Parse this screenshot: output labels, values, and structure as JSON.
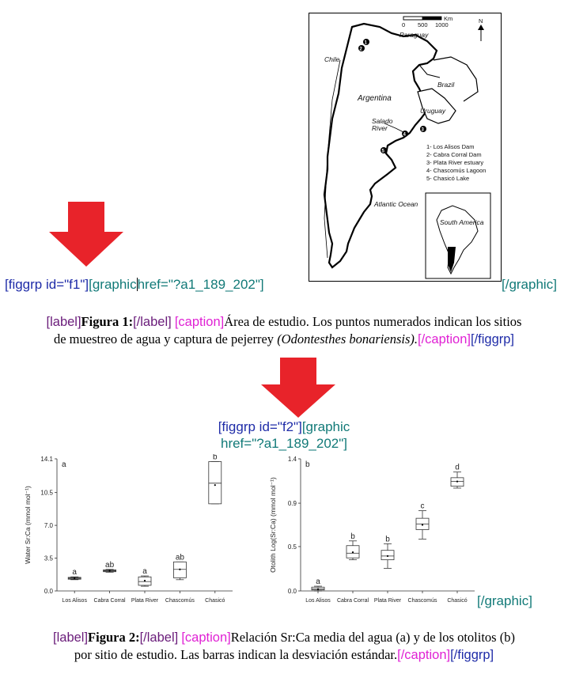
{
  "figure1": {
    "open_tag": "[figgrp id=\"f1\"]",
    "graphic_tag": "[graphic",
    "href": "href=\"?a1_189_202\"]",
    "close_graphic": "[/graphic]",
    "label_open": "[label]",
    "label_text": "Figura 1:",
    "label_close": "[/label]",
    "caption_open": "[caption]",
    "caption_text_1": "Área de estudio. Los puntos numerados indican los sitios",
    "caption_text_2": "de muestreo de agua y captura de pejerrey ",
    "caption_species": "(Odontesthes bonariensis).",
    "caption_close": "[/caption]",
    "figgrp_close": "[/figgrp]",
    "map": {
      "scale_label": "Km",
      "scale_ticks": [
        "0",
        "500",
        "1000"
      ],
      "north": "N",
      "labels": [
        "Paraguay",
        "Chile",
        "Brazil",
        "Argentina",
        "Uruguay",
        "Salado",
        "River",
        "Atlantic Ocean",
        "South America"
      ],
      "sites": [
        "1",
        "2",
        "3",
        "4",
        "5"
      ],
      "legend": [
        "1- Los Alisos Dam",
        "2- Cabra Corral Dam",
        "3- Plata River estuary",
        "4- Chascomús Lagoon",
        "5- Chasicó Lake"
      ]
    }
  },
  "figure2": {
    "open_tag": "[figgrp id=\"f2\"]",
    "graphic_tag": "[graphic",
    "href": "href=\"?a1_189_202\"]",
    "close_graphic": "[/graphic]",
    "label_open": "[label]",
    "label_text": "Figura 2:",
    "label_close": "[/label]",
    "caption_open": "[caption]",
    "caption_text_1": "Relación Sr:Ca media del agua (a) y de los otolitos (b)",
    "caption_text_2": "por sitio de estudio. Las barras indican la desviación estándar.",
    "caption_close": "[/caption]",
    "figgrp_close": "[/figgrp]"
  },
  "colors": {
    "arrow": "#e8232a",
    "tag_blue": "#1f2ca8",
    "tag_teal": "#127a78",
    "tag_magenta": "#e021d4",
    "tag_purple": "#6a1c7a"
  },
  "chart_data": [
    {
      "type": "box",
      "panel": "a",
      "title": "",
      "ylabel": "Water Sr:Ca (mmol mol⁻¹)",
      "ylim": [
        0,
        14.1
      ],
      "yticks": [
        "0.0",
        "3.5",
        "7.0",
        "10.5",
        "14.1"
      ],
      "ytick_values": [
        0,
        3.5,
        7.0,
        10.5,
        14.1
      ],
      "categories": [
        "Los Alisos",
        "Cabra Corral",
        "Plata River",
        "Chascomús",
        "Chasicó"
      ],
      "boxes": [
        {
          "whisker_low": 1.2,
          "q1": 1.25,
          "median": 1.35,
          "mean": 1.35,
          "q3": 1.45,
          "whisker_high": 1.5,
          "letter": "a"
        },
        {
          "whisker_low": 2.0,
          "q1": 2.05,
          "median": 2.15,
          "mean": 2.15,
          "q3": 2.25,
          "whisker_high": 2.3,
          "letter": "ab"
        },
        {
          "whisker_low": 0.5,
          "q1": 0.6,
          "median": 1.0,
          "mean": 1.1,
          "q3": 1.5,
          "whisker_high": 1.6,
          "letter": "a"
        },
        {
          "whisker_low": 1.2,
          "q1": 1.4,
          "median": 2.3,
          "mean": 2.3,
          "q3": 3.1,
          "whisker_high": 3.1,
          "letter": "ab"
        },
        {
          "whisker_low": 9.3,
          "q1": 9.3,
          "median": 11.5,
          "mean": 11.3,
          "q3": 13.8,
          "whisker_high": 13.8,
          "letter": "b"
        }
      ]
    },
    {
      "type": "box",
      "panel": "b",
      "title": "",
      "ylabel": "Otolith Log(Sr:Ca) (mmol mol⁻¹)",
      "ylim": [
        0,
        1.4
      ],
      "yticks": [
        "0.0",
        "0.5",
        "0.9",
        "1.4"
      ],
      "ytick_values": [
        0,
        0.47,
        0.93,
        1.4
      ],
      "categories": [
        "Los Alisos",
        "Cabra Corral",
        "Plata River",
        "Chascomús",
        "Chasicó"
      ],
      "boxes": [
        {
          "whisker_low": 0.0,
          "q1": 0.01,
          "median": 0.02,
          "mean": 0.02,
          "q3": 0.04,
          "whisker_high": 0.05,
          "letter": "a"
        },
        {
          "whisker_low": 0.33,
          "q1": 0.35,
          "median": 0.4,
          "mean": 0.41,
          "q3": 0.48,
          "whisker_high": 0.53,
          "letter": "b"
        },
        {
          "whisker_low": 0.24,
          "q1": 0.33,
          "median": 0.37,
          "mean": 0.37,
          "q3": 0.43,
          "whisker_high": 0.5,
          "letter": "b"
        },
        {
          "whisker_low": 0.55,
          "q1": 0.65,
          "median": 0.71,
          "mean": 0.7,
          "q3": 0.77,
          "whisker_high": 0.85,
          "letter": "c"
        },
        {
          "whisker_low": 1.09,
          "q1": 1.11,
          "median": 1.16,
          "mean": 1.16,
          "q3": 1.2,
          "whisker_high": 1.26,
          "letter": "d"
        }
      ]
    }
  ]
}
